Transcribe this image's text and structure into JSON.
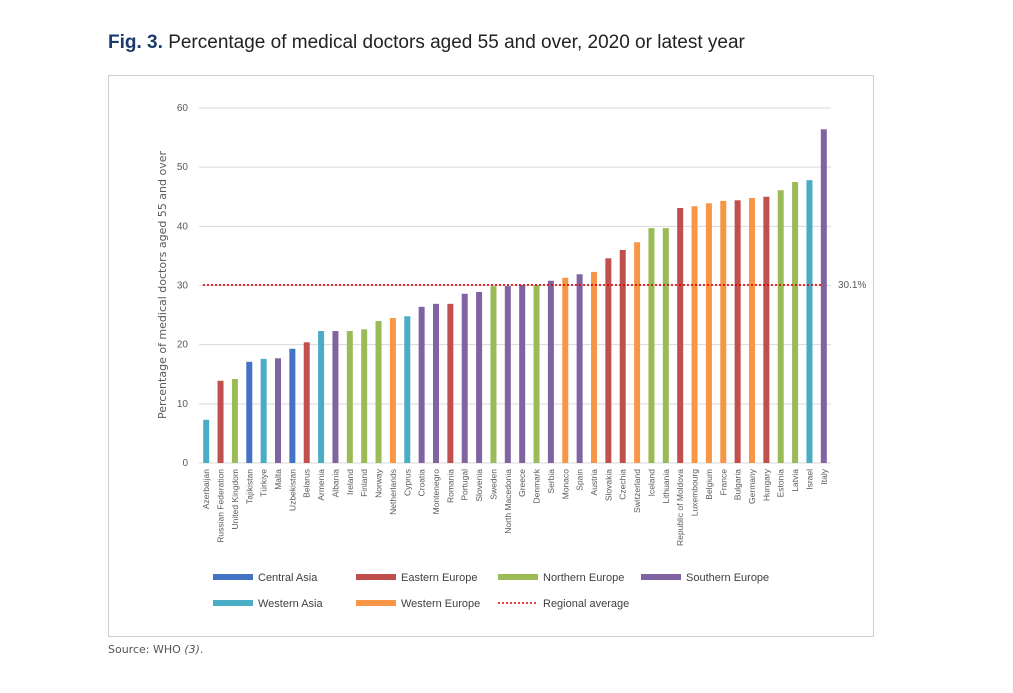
{
  "figure": {
    "label": "Fig. 3.",
    "caption": "Percentage of medical doctors aged 55 and over, 2020 or latest year"
  },
  "source": {
    "text": "Source: WHO",
    "ref": "(3)",
    "end": "."
  },
  "chart_data": {
    "type": "bar",
    "y_label": "Percentage of medical doctors aged 55 and over",
    "categories": [
      "Azerbaijan",
      "Russian Federation",
      "United Kingdom",
      "Tajikistan",
      "Türkiye",
      "Malta",
      "Uzbekistan",
      "Belarus",
      "Armenia",
      "Albania",
      "Ireland",
      "Finland",
      "Norway",
      "Netherlands",
      "Cyprus",
      "Croatia",
      "Montenegro",
      "Romania",
      "Portugal",
      "Slovenia",
      "Sweden",
      "North Macedonia",
      "Greece",
      "Denmark",
      "Serbia",
      "Monaco",
      "Spain",
      "Austria",
      "Slovakia",
      "Czechia",
      "Switzerland",
      "Iceland",
      "Lithuania",
      "Republic of Moldova",
      "Luxembourg",
      "Belgium",
      "France",
      "Bulgaria",
      "Germany",
      "Hungary",
      "Estonia",
      "Latvia",
      "Israel",
      "Italy"
    ],
    "series": [
      {
        "name": "Central Asia",
        "color": "#4472c4",
        "values": [
          null,
          null,
          null,
          17.1,
          null,
          null,
          19.3,
          null,
          null,
          null,
          null,
          null,
          null,
          null,
          null,
          null,
          null,
          null,
          null,
          null,
          null,
          null,
          null,
          null,
          null,
          null,
          null,
          null,
          null,
          null,
          null,
          null,
          null,
          null,
          null,
          null,
          null,
          null,
          null,
          null,
          null,
          null,
          null,
          null
        ]
      },
      {
        "name": "Eastern Europe",
        "color": "#c0504d",
        "values": [
          null,
          13.9,
          null,
          null,
          null,
          null,
          null,
          20.4,
          null,
          null,
          null,
          null,
          null,
          null,
          null,
          null,
          null,
          26.9,
          null,
          null,
          null,
          null,
          null,
          null,
          null,
          null,
          null,
          null,
          34.6,
          36.0,
          null,
          null,
          null,
          43.1,
          null,
          null,
          null,
          44.4,
          null,
          45.0,
          null,
          null,
          null,
          null
        ]
      },
      {
        "name": "Northern Europe",
        "color": "#9bbb59",
        "values": [
          null,
          null,
          14.2,
          null,
          null,
          null,
          null,
          null,
          null,
          null,
          22.3,
          22.6,
          24.0,
          null,
          null,
          null,
          null,
          null,
          null,
          null,
          29.9,
          null,
          null,
          30.1,
          null,
          null,
          null,
          null,
          null,
          null,
          null,
          39.7,
          39.7,
          null,
          null,
          null,
          null,
          null,
          null,
          null,
          46.1,
          47.5,
          null,
          null
        ]
      },
      {
        "name": "Southern Europe",
        "color": "#8064a2",
        "values": [
          null,
          null,
          null,
          null,
          null,
          17.7,
          null,
          null,
          null,
          22.3,
          null,
          null,
          null,
          null,
          null,
          26.4,
          26.9,
          null,
          28.6,
          28.9,
          null,
          29.9,
          30.1,
          null,
          30.8,
          null,
          31.9,
          null,
          null,
          null,
          null,
          null,
          null,
          null,
          null,
          null,
          null,
          null,
          null,
          null,
          null,
          null,
          null,
          56.4
        ]
      },
      {
        "name": "Western Asia",
        "color": "#4bacc6",
        "values": [
          7.3,
          null,
          null,
          null,
          17.6,
          null,
          null,
          null,
          22.3,
          null,
          null,
          null,
          null,
          null,
          24.8,
          null,
          null,
          null,
          null,
          null,
          null,
          null,
          null,
          null,
          null,
          null,
          null,
          null,
          null,
          null,
          null,
          null,
          null,
          null,
          null,
          null,
          null,
          null,
          null,
          null,
          null,
          null,
          47.8,
          null
        ]
      },
      {
        "name": "Western Europe",
        "color": "#f79646",
        "values": [
          null,
          null,
          null,
          null,
          null,
          null,
          null,
          null,
          null,
          null,
          null,
          null,
          null,
          24.5,
          null,
          null,
          null,
          null,
          null,
          null,
          null,
          null,
          null,
          null,
          null,
          31.3,
          null,
          32.3,
          null,
          null,
          37.3,
          null,
          null,
          null,
          43.4,
          43.9,
          44.3,
          null,
          44.8,
          null,
          null,
          null,
          null,
          null
        ]
      }
    ],
    "reference_line": {
      "name": "Regional average",
      "value": 30.1,
      "label": "30.1%",
      "color": "#e00000"
    },
    "ylim": [
      0,
      60
    ],
    "yticks": [
      0,
      10,
      20,
      30,
      40,
      50,
      60
    ],
    "grid": true
  }
}
